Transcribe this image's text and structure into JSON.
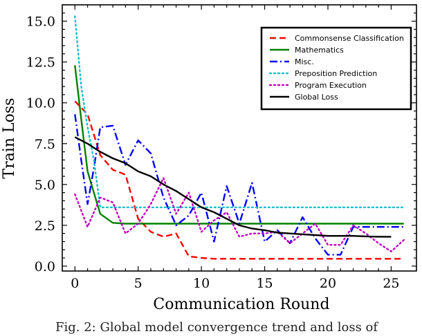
{
  "chart_data": {
    "type": "line",
    "xlabel": "Communication Round",
    "ylabel": "Train Loss",
    "xlim": [
      -1,
      27
    ],
    "ylim": [
      -0.3,
      16.0
    ],
    "xticks": [
      0,
      5,
      10,
      15,
      20,
      25
    ],
    "yticks": [
      0.0,
      2.5,
      5.0,
      7.5,
      10.0,
      12.5,
      15.0
    ],
    "ytick_labels": [
      "0.0",
      "2.5",
      "5.0",
      "7.5",
      "10.0",
      "12.5",
      "15.0"
    ],
    "legend_placement": "upper-right",
    "grid": false,
    "series": [
      {
        "name": "Commonsense Classification",
        "color": "#ff0000",
        "style": "dashed",
        "x": [
          0,
          1,
          2,
          3,
          4,
          5,
          6,
          7,
          8,
          9,
          10,
          11,
          12,
          13,
          14,
          15,
          16,
          17,
          18,
          19,
          20,
          21,
          22,
          23,
          24,
          25,
          26
        ],
        "y": [
          10.1,
          9.3,
          6.8,
          5.9,
          5.6,
          2.9,
          2.1,
          1.8,
          2.0,
          0.6,
          0.5,
          0.45,
          0.45,
          0.45,
          0.45,
          0.45,
          0.45,
          0.45,
          0.45,
          0.45,
          0.45,
          0.45,
          0.45,
          0.45,
          0.45,
          0.45,
          0.45
        ]
      },
      {
        "name": "Mathematics",
        "color": "#008000",
        "style": "solid",
        "x": [
          0,
          0.5,
          1,
          1.5,
          2,
          3,
          4,
          5,
          6,
          7,
          8,
          9,
          10,
          11,
          12,
          13,
          14,
          15,
          16,
          17,
          18,
          19,
          20,
          21,
          22,
          23,
          24,
          25,
          26
        ],
        "y": [
          12.3,
          9.0,
          5.8,
          4.5,
          3.2,
          2.65,
          2.6,
          2.6,
          2.6,
          2.6,
          2.6,
          2.6,
          2.6,
          2.6,
          2.6,
          2.6,
          2.6,
          2.6,
          2.6,
          2.6,
          2.6,
          2.6,
          2.6,
          2.6,
          2.6,
          2.6,
          2.6,
          2.6,
          2.6
        ]
      },
      {
        "name": "Misc.",
        "color": "#0000ff",
        "style": "dashdot",
        "x": [
          0,
          0.5,
          1,
          1.5,
          2,
          3,
          4,
          5,
          6,
          7,
          8,
          9,
          10,
          11,
          12,
          13,
          14,
          15,
          16,
          17,
          18,
          19,
          20,
          21,
          22,
          23,
          24,
          25,
          26
        ],
        "y": [
          9.3,
          6.5,
          3.8,
          6.0,
          8.5,
          8.6,
          6.2,
          7.7,
          6.9,
          4.2,
          2.5,
          3.1,
          4.5,
          1.5,
          4.9,
          2.6,
          5.1,
          1.5,
          2.2,
          1.4,
          3.0,
          1.7,
          0.7,
          0.7,
          2.4,
          2.4,
          2.4,
          2.4,
          2.4
        ]
      },
      {
        "name": "Preposition Prediction",
        "color": "#17becf",
        "style": "dotted",
        "x": [
          0,
          0.5,
          1,
          1.5,
          2,
          3,
          4,
          5,
          6,
          7,
          8,
          9,
          10,
          11,
          12,
          13,
          14,
          15,
          16,
          17,
          18,
          19,
          20,
          21,
          22,
          23,
          24,
          25,
          26
        ],
        "y": [
          15.3,
          11.0,
          8.5,
          6.5,
          3.6,
          3.6,
          3.6,
          3.6,
          3.6,
          3.6,
          3.6,
          3.6,
          3.6,
          3.6,
          3.6,
          3.6,
          3.6,
          3.6,
          3.6,
          3.6,
          3.6,
          3.6,
          3.6,
          3.6,
          3.6,
          3.6,
          3.6,
          3.6,
          3.6
        ]
      },
      {
        "name": "Program Execution",
        "color": "#c000c0",
        "style": "dotted",
        "x": [
          0,
          1,
          2,
          3,
          4,
          5,
          6,
          7,
          8,
          9,
          10,
          11,
          12,
          13,
          14,
          15,
          16,
          17,
          18,
          19,
          20,
          21,
          22,
          23,
          24,
          25,
          26
        ],
        "y": [
          4.4,
          2.4,
          4.2,
          3.9,
          2.0,
          2.6,
          3.8,
          5.4,
          3.2,
          4.5,
          2.1,
          2.8,
          3.3,
          1.8,
          2.0,
          2.0,
          2.1,
          1.4,
          2.0,
          2.6,
          1.3,
          1.3,
          2.5,
          2.0,
          1.4,
          0.9,
          1.6
        ]
      },
      {
        "name": "Global Loss",
        "color": "#000000",
        "style": "solid",
        "x": [
          0,
          1,
          2,
          3,
          4,
          5,
          6,
          7,
          8,
          9,
          10,
          11,
          12,
          13,
          14,
          15,
          16,
          17,
          18,
          19,
          20,
          21,
          22,
          23,
          24,
          25
        ],
        "y": [
          7.9,
          7.5,
          7.0,
          6.6,
          6.3,
          5.8,
          5.5,
          5.0,
          4.6,
          4.1,
          3.6,
          3.3,
          2.9,
          2.5,
          2.3,
          2.2,
          2.05,
          2.0,
          1.95,
          1.9,
          1.85,
          1.85,
          1.85,
          1.82,
          1.8,
          1.8
        ]
      }
    ]
  },
  "caption": {
    "text": "Fig. 2: Global model convergence trend and loss of"
  }
}
